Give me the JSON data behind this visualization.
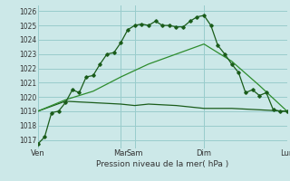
{
  "background_color": "#cce8e8",
  "grid_color": "#99cccc",
  "line_color_dark": "#1a5c1a",
  "line_color_mid": "#2d8c2d",
  "xlabel": "Pression niveau de la mer( hPa )",
  "ylim": [
    1016.4,
    1026.4
  ],
  "yticks": [
    1017,
    1018,
    1019,
    1020,
    1021,
    1022,
    1023,
    1024,
    1025,
    1026
  ],
  "xtick_labels": [
    "Ven",
    "Mar",
    "Sam",
    "Dim",
    "Lun"
  ],
  "xtick_positions": [
    0,
    12,
    14,
    24,
    36
  ],
  "vline_positions": [
    0,
    12,
    24,
    36
  ],
  "series1_x": [
    0,
    1,
    2,
    3,
    4,
    5,
    6,
    7,
    8,
    9,
    10,
    11,
    12,
    13,
    14,
    15,
    16,
    17,
    18,
    19,
    20,
    21,
    22,
    23,
    24,
    25,
    26,
    27,
    28,
    29,
    30,
    31,
    32,
    33,
    34,
    35,
    36
  ],
  "series1_y": [
    1016.7,
    1017.2,
    1018.9,
    1019.0,
    1019.6,
    1020.5,
    1020.3,
    1021.4,
    1021.5,
    1022.3,
    1023.0,
    1023.1,
    1023.8,
    1024.7,
    1025.0,
    1025.1,
    1025.0,
    1025.3,
    1025.0,
    1025.0,
    1024.9,
    1024.9,
    1025.3,
    1025.6,
    1025.7,
    1025.0,
    1023.6,
    1023.0,
    1022.3,
    1021.7,
    1020.3,
    1020.5,
    1020.1,
    1020.3,
    1019.1,
    1019.0,
    1019.0
  ],
  "series2_x": [
    0,
    4,
    8,
    12,
    16,
    20,
    24,
    28,
    32,
    36
  ],
  "series2_y": [
    1019.0,
    1019.8,
    1020.4,
    1021.4,
    1022.3,
    1023.0,
    1023.7,
    1022.5,
    1020.8,
    1019.0
  ],
  "series3_x": [
    0,
    4,
    8,
    12,
    14,
    16,
    20,
    24,
    28,
    32,
    36
  ],
  "series3_y": [
    1019.0,
    1019.7,
    1019.6,
    1019.5,
    1019.4,
    1019.5,
    1019.4,
    1019.2,
    1019.2,
    1019.1,
    1019.0
  ]
}
